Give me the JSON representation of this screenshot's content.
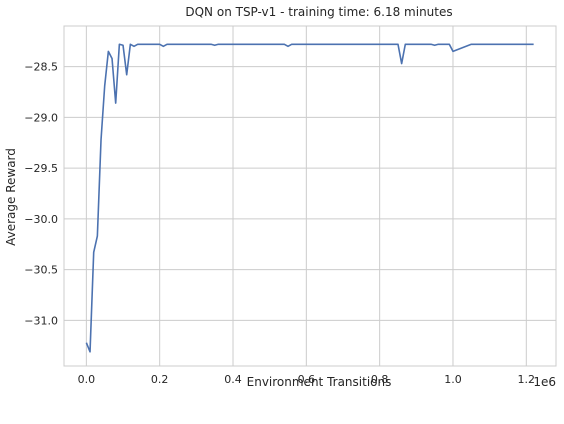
{
  "chart_data": {
    "type": "line",
    "title": "DQN on TSP-v1 - training time: 6.18 minutes",
    "xlabel": "Environment Transitions",
    "ylabel": "Average Reward",
    "x_offset_label": "1e6",
    "x_tick_values": [
      0.0,
      0.2,
      0.4,
      0.6,
      0.8,
      1.0,
      1.2
    ],
    "x_tick_labels": [
      "0.0",
      "0.2",
      "0.4",
      "0.6",
      "0.8",
      "1.0",
      "1.2"
    ],
    "y_tick_values": [
      -31.0,
      -30.5,
      -30.0,
      -29.5,
      -29.0,
      -28.5
    ],
    "y_tick_labels": [
      "−31.0",
      "−30.5",
      "−30.0",
      "−29.5",
      "−29.0",
      "−28.5"
    ],
    "xlim": [
      -0.061,
      1.281
    ],
    "ylim": [
      -31.45,
      -28.1
    ],
    "grid": true,
    "legend": "none",
    "colors": {
      "line": "#4c72b0",
      "grid": "#cccccc",
      "axes_edge": "#cccccc",
      "text": "#262626"
    },
    "series": [
      {
        "x": [
          0,
          0.01,
          0.02,
          0.03,
          0.04,
          0.05,
          0.06,
          0.07,
          0.08,
          0.09,
          0.1,
          0.11,
          0.12,
          0.13,
          0.14,
          0.16,
          0.18,
          0.2,
          0.21,
          0.22,
          0.24,
          0.26,
          0.28,
          0.3,
          0.32,
          0.34,
          0.35,
          0.36,
          0.38,
          0.4,
          0.45,
          0.5,
          0.54,
          0.55,
          0.56,
          0.6,
          0.65,
          0.7,
          0.75,
          0.8,
          0.85,
          0.86,
          0.87,
          0.9,
          0.94,
          0.95,
          0.96,
          0.98,
          0.99,
          1.0,
          1.05,
          1.1,
          1.15,
          1.2,
          1.22
        ],
        "y": [
          -31.22,
          -31.31,
          -30.33,
          -30.17,
          -29.22,
          -28.69,
          -28.35,
          -28.42,
          -28.86,
          -28.28,
          -28.29,
          -28.58,
          -28.28,
          -28.3,
          -28.28,
          -28.28,
          -28.28,
          -28.28,
          -28.3,
          -28.28,
          -28.28,
          -28.28,
          -28.28,
          -28.28,
          -28.28,
          -28.28,
          -28.29,
          -28.28,
          -28.28,
          -28.28,
          -28.28,
          -28.28,
          -28.28,
          -28.3,
          -28.28,
          -28.28,
          -28.28,
          -28.28,
          -28.28,
          -28.28,
          -28.28,
          -28.47,
          -28.28,
          -28.28,
          -28.28,
          -28.29,
          -28.28,
          -28.28,
          -28.28,
          -28.35,
          -28.28,
          -28.28,
          -28.28,
          -28.28,
          -28.28
        ]
      }
    ]
  }
}
